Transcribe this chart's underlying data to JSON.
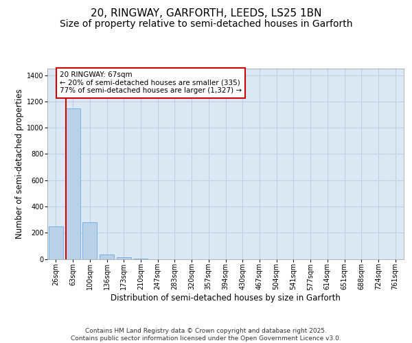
{
  "title_line1": "20, RINGWAY, GARFORTH, LEEDS, LS25 1BN",
  "title_line2": "Size of property relative to semi-detached houses in Garforth",
  "xlabel": "Distribution of semi-detached houses by size in Garforth",
  "ylabel": "Number of semi-detached properties",
  "categories": [
    "26sqm",
    "63sqm",
    "100sqm",
    "136sqm",
    "173sqm",
    "210sqm",
    "247sqm",
    "283sqm",
    "320sqm",
    "357sqm",
    "394sqm",
    "430sqm",
    "467sqm",
    "504sqm",
    "541sqm",
    "577sqm",
    "614sqm",
    "651sqm",
    "688sqm",
    "724sqm",
    "761sqm"
  ],
  "values": [
    250,
    1145,
    280,
    33,
    15,
    5,
    0,
    0,
    0,
    0,
    0,
    0,
    0,
    0,
    0,
    0,
    0,
    0,
    0,
    0,
    0
  ],
  "bar_color": "#b8d0e8",
  "bar_edge_color": "#6aabe8",
  "vline_color": "#cc0000",
  "vline_pos": 0.575,
  "annotation_text": "20 RINGWAY: 67sqm\n← 20% of semi-detached houses are smaller (335)\n77% of semi-detached houses are larger (1,327) →",
  "annotation_box_color": "#cc0000",
  "annotation_bg": "#ffffff",
  "ylim": [
    0,
    1450
  ],
  "yticks": [
    0,
    200,
    400,
    600,
    800,
    1000,
    1200,
    1400
  ],
  "grid_color": "#c0d0e4",
  "bg_color": "#dce8f4",
  "footer_text": "Contains HM Land Registry data © Crown copyright and database right 2025.\nContains public sector information licensed under the Open Government Licence v3.0.",
  "title_fontsize": 11,
  "subtitle_fontsize": 10,
  "axis_label_fontsize": 8.5,
  "tick_fontsize": 7,
  "annotation_fontsize": 7.5,
  "footer_fontsize": 6.5
}
